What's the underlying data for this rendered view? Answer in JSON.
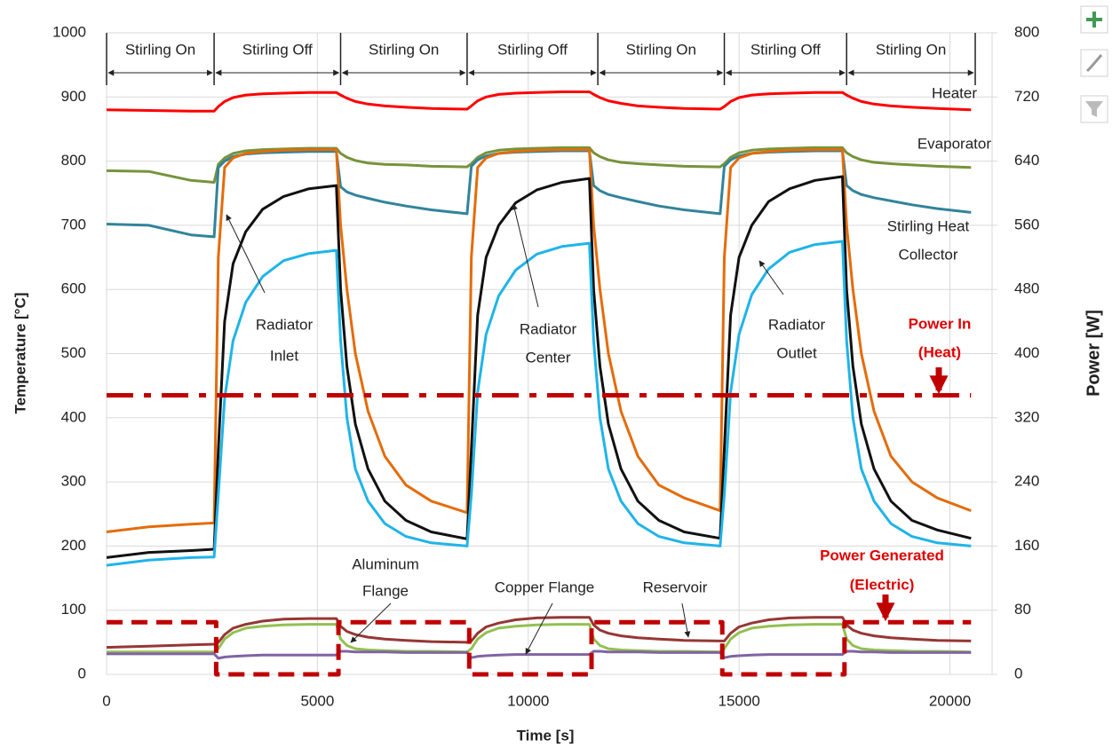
{
  "chart_data": {
    "type": "line",
    "xlabel": "Time [s]",
    "ylabel": "Temperature [°C]",
    "y2label": "Power [W]",
    "xlim": [
      0,
      21000
    ],
    "xticks": [
      0,
      5000,
      10000,
      15000,
      20000
    ],
    "ylim": [
      0,
      1000
    ],
    "yticks": [
      0,
      100,
      200,
      300,
      400,
      500,
      600,
      700,
      800,
      900,
      1000
    ],
    "y2lim": [
      0,
      800
    ],
    "y2ticks": [
      0,
      80,
      160,
      240,
      320,
      400,
      480,
      560,
      640,
      720,
      800
    ],
    "grid": true,
    "phases": {
      "labels": [
        "Stirling On",
        "Stirling Off",
        "Stirling On",
        "Stirling Off",
        "Stirling On",
        "Stirling Off",
        "Stirling On"
      ],
      "bounds": [
        0,
        2550,
        5550,
        8550,
        11650,
        14650,
        17550,
        20600
      ]
    },
    "x": [
      0,
      1000,
      2000,
      2550,
      2650,
      2800,
      3000,
      3300,
      3700,
      4200,
      4800,
      5450,
      5550,
      5700,
      5900,
      6200,
      6600,
      7100,
      7700,
      8550,
      8650,
      8800,
      9000,
      9300,
      9700,
      10200,
      10800,
      11450,
      11550,
      11700,
      11900,
      12200,
      12600,
      13100,
      13700,
      14550,
      14650,
      14800,
      15000,
      15300,
      15700,
      16200,
      16800,
      17450,
      17550,
      17700,
      17900,
      18200,
      18600,
      19100,
      19700,
      20500
    ],
    "series": [
      {
        "color": "#ff0000",
        "values": [
          880,
          879,
          878,
          878,
          885,
          893,
          899,
          903,
          905,
          906,
          907,
          907,
          903,
          898,
          893,
          889,
          886,
          884,
          882,
          881,
          886,
          894,
          900,
          904,
          906,
          907,
          908,
          908,
          904,
          899,
          894,
          890,
          886,
          884,
          882,
          881,
          885,
          893,
          899,
          903,
          905,
          906,
          907,
          907,
          903,
          898,
          893,
          889,
          886,
          884,
          882,
          880
        ]
      },
      {
        "color": "#77933c",
        "values": [
          785,
          784,
          770,
          767,
          795,
          805,
          812,
          816,
          818,
          819,
          820,
          820,
          812,
          806,
          801,
          797,
          795,
          794,
          792,
          791,
          796,
          806,
          813,
          817,
          819,
          820,
          821,
          821,
          813,
          807,
          802,
          798,
          796,
          794,
          792,
          791,
          796,
          806,
          813,
          817,
          819,
          820,
          821,
          821,
          813,
          807,
          802,
          798,
          796,
          794,
          792,
          790
        ]
      },
      {
        "color": "#31849b",
        "values": [
          702,
          700,
          685,
          682,
          790,
          800,
          807,
          811,
          813,
          814,
          815,
          815,
          760,
          752,
          747,
          742,
          736,
          730,
          724,
          718,
          792,
          802,
          808,
          812,
          814,
          815,
          816,
          816,
          762,
          754,
          748,
          743,
          737,
          730,
          724,
          718,
          792,
          802,
          808,
          812,
          814,
          815,
          816,
          816,
          762,
          754,
          748,
          743,
          738,
          732,
          726,
          720
        ]
      },
      {
        "color": "#e46c0a",
        "values": [
          222,
          230,
          234,
          236,
          650,
          790,
          805,
          812,
          815,
          817,
          818,
          818,
          700,
          600,
          500,
          410,
          340,
          295,
          270,
          252,
          650,
          790,
          805,
          812,
          815,
          817,
          818,
          818,
          700,
          600,
          500,
          410,
          340,
          295,
          275,
          255,
          650,
          790,
          805,
          812,
          815,
          817,
          818,
          818,
          700,
          600,
          500,
          410,
          340,
          300,
          275,
          255
        ]
      },
      {
        "color": "#111111",
        "values": [
          182,
          190,
          193,
          195,
          350,
          550,
          640,
          690,
          725,
          745,
          757,
          762,
          600,
          480,
          390,
          320,
          270,
          240,
          222,
          211,
          350,
          560,
          650,
          700,
          735,
          755,
          767,
          773,
          600,
          480,
          390,
          320,
          270,
          240,
          222,
          212,
          350,
          560,
          650,
          700,
          737,
          757,
          770,
          776,
          600,
          480,
          390,
          320,
          270,
          240,
          225,
          212
        ]
      },
      {
        "color": "#1fb4e8",
        "values": [
          170,
          178,
          182,
          183,
          280,
          430,
          520,
          580,
          620,
          645,
          656,
          661,
          520,
          400,
          320,
          270,
          235,
          215,
          205,
          200,
          280,
          440,
          530,
          590,
          630,
          655,
          667,
          672,
          520,
          400,
          320,
          270,
          235,
          215,
          205,
          200,
          280,
          440,
          530,
          592,
          632,
          658,
          670,
          675,
          520,
          400,
          320,
          270,
          235,
          215,
          205,
          200
        ]
      },
      {
        "color": "#953735",
        "values": [
          42,
          44,
          46,
          47,
          50,
          62,
          72,
          78,
          83,
          86,
          87,
          87,
          75,
          67,
          62,
          58,
          55,
          53,
          51,
          50,
          52,
          64,
          74,
          80,
          85,
          88,
          89,
          89,
          77,
          69,
          64,
          60,
          57,
          55,
          53,
          52,
          52,
          64,
          74,
          80,
          85,
          88,
          89,
          89,
          77,
          69,
          64,
          60,
          57,
          55,
          53,
          52
        ]
      },
      {
        "color": "#92c050",
        "values": [
          35,
          35,
          35,
          35,
          40,
          55,
          65,
          72,
          75,
          77,
          78,
          78,
          55,
          45,
          40,
          38,
          37,
          36,
          36,
          35,
          40,
          55,
          65,
          72,
          75,
          77,
          78,
          78,
          55,
          45,
          40,
          38,
          37,
          36,
          36,
          35,
          40,
          55,
          65,
          72,
          75,
          77,
          78,
          78,
          55,
          45,
          40,
          38,
          37,
          36,
          36,
          35
        ]
      },
      {
        "color": "#8064a2",
        "values": [
          32,
          32,
          32,
          32,
          25,
          27,
          28,
          29,
          30,
          30,
          30,
          30,
          36,
          36,
          35,
          35,
          35,
          34,
          34,
          34,
          26,
          28,
          29,
          30,
          31,
          31,
          31,
          31,
          36,
          36,
          35,
          35,
          35,
          34,
          34,
          34,
          26,
          28,
          29,
          30,
          31,
          31,
          31,
          31,
          36,
          36,
          35,
          35,
          34,
          34,
          34,
          34
        ]
      },
      {
        "color": "#c00000",
        "axis": "y2",
        "dash": "dashdot",
        "x": [
          0,
          20500
        ],
        "values": [
          348,
          348
        ]
      },
      {
        "color": "#c00000",
        "axis": "y2",
        "dash": "dash",
        "x": [
          0,
          2600,
          2600,
          5500,
          5500,
          8600,
          8600,
          11500,
          11500,
          14600,
          14600,
          17500,
          17500,
          20500
        ],
        "values": [
          65,
          65,
          0,
          0,
          65,
          65,
          0,
          0,
          65,
          65,
          0,
          0,
          65,
          65
        ]
      }
    ],
    "annotations": [
      {
        "lines": [
          "Heater"
        ]
      },
      {
        "lines": [
          "Evaporator"
        ]
      },
      {
        "lines": [
          "Stirling Heat",
          "Collector"
        ]
      },
      {
        "lines": [
          "Radiator",
          "Inlet"
        ]
      },
      {
        "lines": [
          "Radiator",
          "Center"
        ]
      },
      {
        "lines": [
          "Radiator",
          "Outlet"
        ]
      },
      {
        "lines": [
          "Power In",
          "(Heat)"
        ]
      },
      {
        "lines": [
          "Aluminum",
          "Flange"
        ]
      },
      {
        "lines": [
          "Copper Flange"
        ]
      },
      {
        "lines": [
          "Reservoir"
        ]
      },
      {
        "lines": [
          "Power Generated",
          "(Electric)"
        ]
      }
    ]
  }
}
